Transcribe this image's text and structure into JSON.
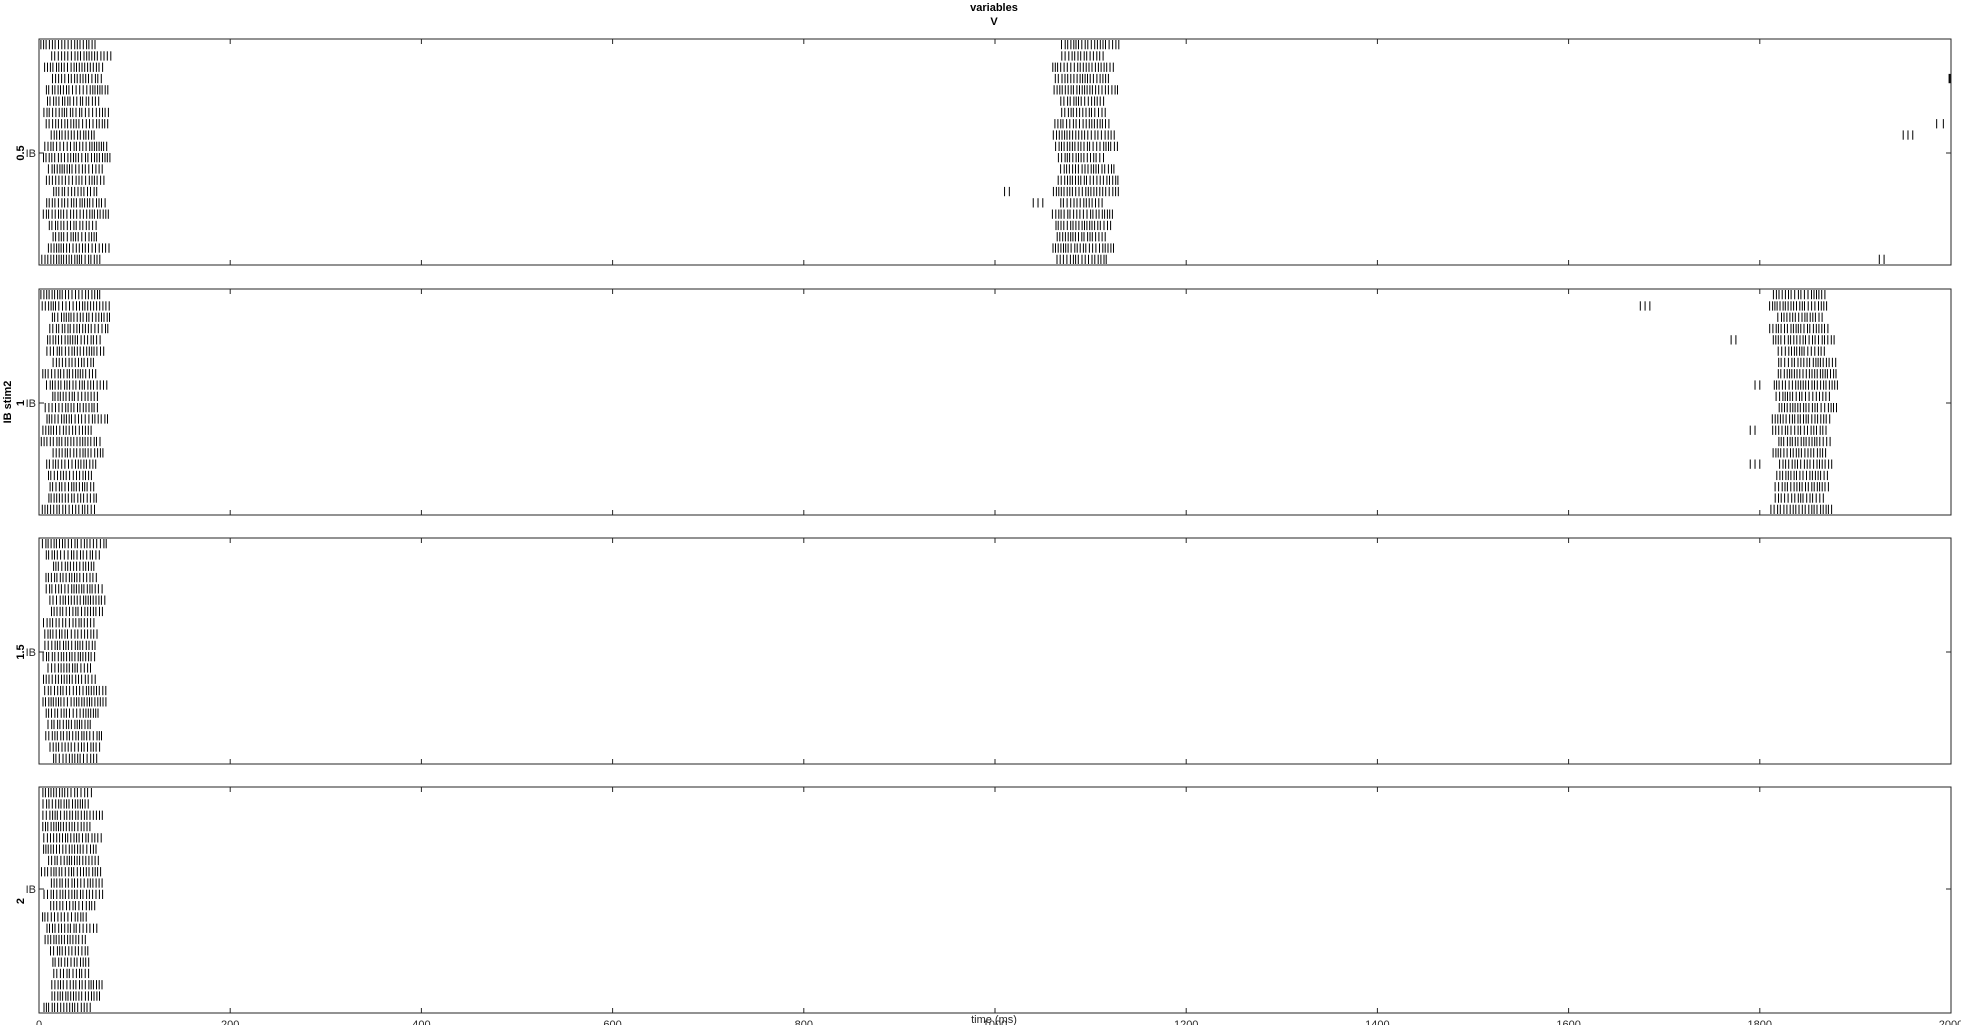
{
  "title_lines": [
    "variables",
    "V"
  ],
  "outer_ylabel": "IB stim2",
  "chart_data": {
    "type": "raster",
    "xlabel": "time (ms)",
    "xlim": [
      0,
      2000
    ],
    "xticks": [
      0,
      200,
      400,
      600,
      800,
      1000,
      1200,
      1400,
      1600,
      1800,
      2000
    ],
    "neurons_per_panel": 20,
    "grid": false,
    "panels": [
      {
        "panel_label": "0.5",
        "ytick_label": "IB",
        "bursts": [
          {
            "start": 2,
            "end": 78,
            "jitter": 14
          },
          {
            "start": 1060,
            "end": 1130,
            "jitter": 12
          },
          {
            "sparse": [
              [
                1010,
                13
              ],
              [
                1015,
                13
              ],
              [
                1040,
                14
              ],
              [
                1045,
                14
              ],
              [
                1050,
                14
              ],
              [
                1925,
                19
              ],
              [
                1930,
                19
              ],
              [
                1950,
                8
              ],
              [
                1955,
                8
              ],
              [
                1960,
                8
              ],
              [
                1985,
                7
              ],
              [
                1992,
                7
              ],
              [
                1998,
                3
              ],
              [
                1999,
                3
              ],
              [
                2000,
                13
              ]
            ]
          }
        ]
      },
      {
        "panel_label": "1",
        "ytick_label": "IB",
        "bursts": [
          {
            "start": 2,
            "end": 76,
            "jitter": 14
          },
          {
            "start": 1810,
            "end": 1885,
            "jitter": 12
          },
          {
            "sparse": [
              [
                1675,
                1
              ],
              [
                1680,
                1
              ],
              [
                1685,
                1
              ],
              [
                1770,
                4
              ],
              [
                1775,
                4
              ],
              [
                1795,
                8
              ],
              [
                1800,
                8
              ],
              [
                1790,
                12
              ],
              [
                1795,
                12
              ],
              [
                1790,
                15
              ],
              [
                1795,
                15
              ],
              [
                1800,
                15
              ]
            ]
          }
        ]
      },
      {
        "panel_label": "1.5",
        "ytick_label": "IB",
        "bursts": [
          {
            "start": 2,
            "end": 74,
            "jitter": 14
          }
        ]
      },
      {
        "panel_label": "2",
        "ytick_label": "IB",
        "bursts": [
          {
            "start": 2,
            "end": 70,
            "jitter": 14
          }
        ]
      }
    ]
  }
}
